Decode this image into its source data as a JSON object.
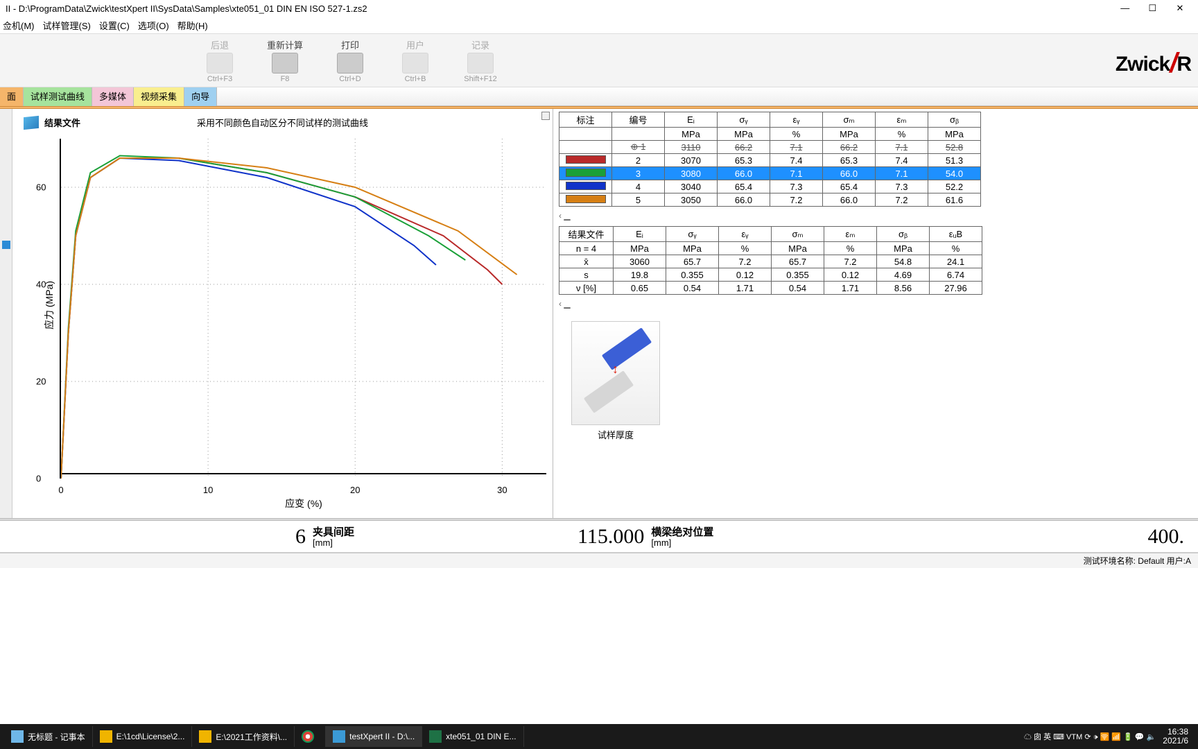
{
  "window": {
    "title": "II - D:\\ProgramData\\Zwick\\testXpert II\\SysData\\Samples\\xte051_01 DIN EN ISO 527-1.zs2"
  },
  "menu": {
    "items": [
      "佥机(M)",
      "试样管理(S)",
      "设置(C)",
      "选项(O)",
      "帮助(H)"
    ]
  },
  "toolbar": {
    "buttons": [
      {
        "label": "后退",
        "short": "Ctrl+F3",
        "disabled": true
      },
      {
        "label": "重新计算",
        "short": "F8",
        "disabled": false
      },
      {
        "label": "打印",
        "short": "Ctrl+D",
        "disabled": false
      },
      {
        "label": "用户",
        "short": "Ctrl+B",
        "disabled": true
      },
      {
        "label": "记录",
        "short": "Shift+F12",
        "disabled": true
      }
    ],
    "brand": "Zwick",
    "brand_suffix": "R"
  },
  "tabs": {
    "items": [
      {
        "text": "面",
        "cls": "t-orange"
      },
      {
        "text": "试样测试曲线",
        "cls": "t-green"
      },
      {
        "text": "多媒体",
        "cls": "t-pink"
      },
      {
        "text": "视频采集",
        "cls": "t-yellow"
      },
      {
        "text": "向导",
        "cls": "t-blue"
      }
    ]
  },
  "chart": {
    "file_label": "结果文件",
    "title": "采用不同颜色自动区分不同试样的测试曲线",
    "y_title": "应力  (MPa)",
    "x_title": "应变  (%)",
    "y_ticks": [
      0,
      20,
      40,
      60
    ],
    "x_ticks": [
      0,
      10,
      20,
      30
    ],
    "xlim": [
      0,
      33
    ],
    "ylim": [
      0,
      70
    ],
    "curves": [
      {
        "color": "#b92a2a",
        "pts": [
          [
            0,
            0
          ],
          [
            0.5,
            30
          ],
          [
            1,
            50
          ],
          [
            2,
            62
          ],
          [
            4,
            66
          ],
          [
            8,
            66
          ],
          [
            14,
            63
          ],
          [
            20,
            58
          ],
          [
            26,
            50
          ],
          [
            29,
            43
          ],
          [
            30,
            40
          ]
        ]
      },
      {
        "color": "#1aa038",
        "pts": [
          [
            0,
            0
          ],
          [
            0.5,
            31
          ],
          [
            1,
            51
          ],
          [
            2,
            63
          ],
          [
            4,
            66.5
          ],
          [
            8,
            66
          ],
          [
            14,
            63
          ],
          [
            20,
            58
          ],
          [
            25,
            50
          ],
          [
            27.5,
            45
          ]
        ]
      },
      {
        "color": "#1033c9",
        "pts": [
          [
            0,
            0
          ],
          [
            0.5,
            30
          ],
          [
            1,
            50
          ],
          [
            2,
            62
          ],
          [
            4,
            66
          ],
          [
            8,
            65.5
          ],
          [
            14,
            62
          ],
          [
            20,
            56
          ],
          [
            24,
            48
          ],
          [
            25.5,
            44
          ]
        ]
      },
      {
        "color": "#d67f14",
        "pts": [
          [
            0,
            0
          ],
          [
            0.5,
            30
          ],
          [
            1,
            50
          ],
          [
            2,
            62
          ],
          [
            4,
            66
          ],
          [
            8,
            66
          ],
          [
            14,
            64
          ],
          [
            20,
            60
          ],
          [
            27,
            51
          ],
          [
            31,
            42
          ]
        ]
      }
    ]
  },
  "table1": {
    "head1": [
      "标注",
      "编号",
      "Eᵢ",
      "σᵧ",
      "εᵧ",
      "σₘ",
      "εₘ",
      "σᵦ"
    ],
    "head2": [
      "",
      "",
      "MPa",
      "MPa",
      "%",
      "MPa",
      "%",
      "MPa"
    ],
    "rows": [
      {
        "swatch": null,
        "num": "⊕ 1",
        "vals": [
          "3110",
          "66.2",
          "7.1",
          "66.2",
          "7.1",
          "52.8"
        ],
        "strike": true
      },
      {
        "swatch": "#b92a2a",
        "num": "2",
        "vals": [
          "3070",
          "65.3",
          "7.4",
          "65.3",
          "7.4",
          "51.3"
        ]
      },
      {
        "swatch": "#1aa038",
        "num": "3",
        "vals": [
          "3080",
          "66.0",
          "7.1",
          "66.0",
          "7.1",
          "54.0"
        ],
        "selected": true
      },
      {
        "swatch": "#1033c9",
        "num": "4",
        "vals": [
          "3040",
          "65.4",
          "7.3",
          "65.4",
          "7.3",
          "52.2"
        ]
      },
      {
        "swatch": "#d67f14",
        "num": "5",
        "vals": [
          "3050",
          "66.0",
          "7.2",
          "66.0",
          "7.2",
          "61.6"
        ]
      }
    ]
  },
  "table2": {
    "head1": [
      "结果文件",
      "Eᵢ",
      "σᵧ",
      "εᵧ",
      "σₘ",
      "εₘ",
      "σᵦ",
      "εᵤB"
    ],
    "head2": [
      "n = 4",
      "MPa",
      "MPa",
      "%",
      "MPa",
      "%",
      "MPa",
      "%"
    ],
    "rows": [
      [
        "x̄",
        "3060",
        "65.7",
        "7.2",
        "65.7",
        "7.2",
        "54.8",
        "24.1"
      ],
      [
        "s",
        "19.8",
        "0.355",
        "0.12",
        "0.355",
        "0.12",
        "4.69",
        "6.74"
      ],
      [
        "ν [%]",
        "0.65",
        "0.54",
        "1.71",
        "0.54",
        "1.71",
        "8.56",
        "27.96"
      ]
    ]
  },
  "specimen": {
    "label": "试样厚度"
  },
  "footer": {
    "left_val": "6",
    "left_label": "夹具间距",
    "left_unit": "[mm]",
    "mid_val": "115.000",
    "mid_label": "横梁绝对位置",
    "mid_unit": "[mm]",
    "right_val": "400."
  },
  "status": {
    "text": "测试环境名称: Default   用户:A"
  },
  "taskbar": {
    "items": [
      {
        "ico": "note",
        "text": "无标题 - 记事本"
      },
      {
        "ico": "folder",
        "text": "E:\\1cd\\License\\2..."
      },
      {
        "ico": "folder",
        "text": "E:\\2021工作资料\\..."
      },
      {
        "ico": "chrome",
        "text": ""
      },
      {
        "ico": "cube",
        "text": "testXpert II  - D:\\...",
        "active": true
      },
      {
        "ico": "excel",
        "text": "xte051_01 DIN E..."
      }
    ],
    "tray": [
      "☁",
      "囱 英",
      "⌨",
      "VTM",
      "⟳",
      "🕩",
      "🛜",
      "📶",
      "🔋",
      "💬",
      "🔈"
    ],
    "clock": "16:38",
    "date": "2021/6"
  }
}
